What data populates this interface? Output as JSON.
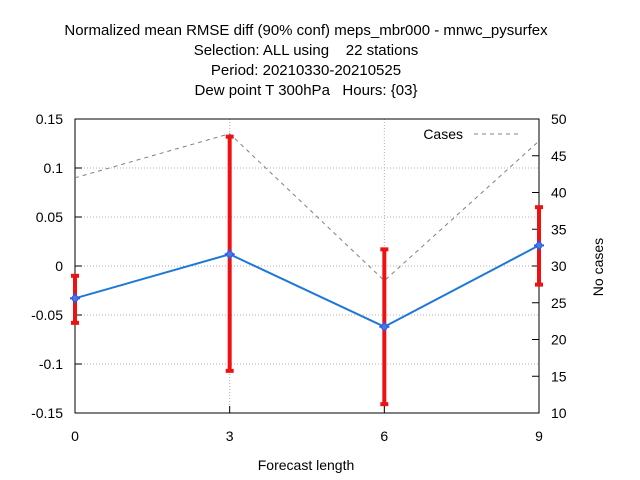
{
  "chart_data": {
    "type": "line",
    "title_lines": [
      "Normalized mean RMSE diff (90% conf) meps_mbr000 - mnwc_pysurfex",
      "Selection: ALL using    22 stations",
      "Period: 20210330-20210525",
      "Dew point T 300hPa   Hours: {03}"
    ],
    "xlabel": "Forecast length",
    "ylabel": "",
    "y2label": "No cases",
    "x": [
      0,
      3,
      6,
      9
    ],
    "xlim": [
      0,
      9
    ],
    "ylim": [
      -0.15,
      0.15
    ],
    "y2lim": [
      10,
      50
    ],
    "x_ticks": [
      "0",
      "3",
      "6",
      "9"
    ],
    "y_ticks": [
      "0.15",
      "0.1",
      "0.05",
      "0",
      "-0.05",
      "-0.1",
      "-0.15"
    ],
    "y2_ticks": [
      "50",
      "45",
      "40",
      "35",
      "30",
      "25",
      "20",
      "15",
      "10"
    ],
    "grid": true,
    "legend_position": "top-right",
    "series": [
      {
        "values": [
          -0.033,
          0.012,
          -0.062,
          0.021
        ],
        "error_low": [
          -0.058,
          -0.107,
          -0.141,
          -0.019
        ],
        "error_high": [
          -0.01,
          0.132,
          0.017,
          0.06
        ],
        "axis": "left",
        "color": "#1e78d8",
        "error_color": "#ee1111"
      },
      {
        "name": "Cases",
        "values": [
          42,
          48,
          28,
          47
        ],
        "axis": "right",
        "color": "#808080",
        "dashed": true
      }
    ]
  }
}
